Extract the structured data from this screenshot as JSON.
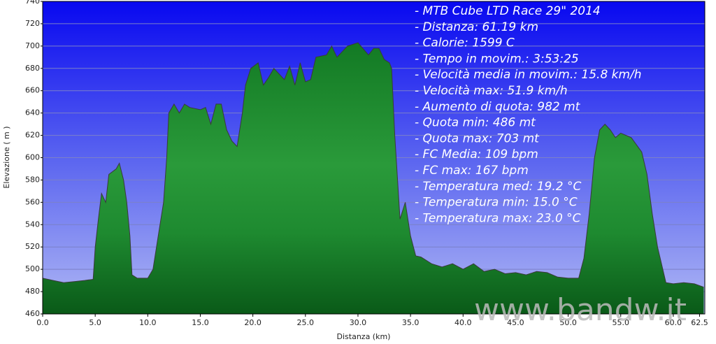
{
  "chart_data": {
    "type": "area",
    "x_label": "Distanza  (km)",
    "y_label": "Elevazione ( m )",
    "annotations": [
      "- MTB Cube LTD Race 29\" 2014",
      "- Distanza: 61.19 km",
      "- Calorie: 1599 C",
      "- Tempo in movim.: 3:53:25",
      "- Velocità media in movim.: 15.8 km/h",
      "- Velocità max: 51.9 km/h",
      "- Aumento di quota: 982 mt",
      "- Quota min: 486 mt",
      "- Quota max: 703 mt",
      "- FC Media: 109 bpm",
      "- FC max: 167 bpm",
      "- Temperatura med: 19.2 °C",
      "- Temperatura min: 15.0 °C",
      "- Temperatura max: 23.0 °C"
    ],
    "watermark": "www.bandw.it",
    "color": "#2a9a3a",
    "x": [
      0,
      1,
      2,
      3,
      4,
      4.8,
      5.0,
      5.3,
      5.6,
      6.0,
      6.3,
      7.0,
      7.3,
      7.7,
      8.0,
      8.3,
      8.5,
      9,
      10,
      10.5,
      11,
      11.5,
      11.8,
      12,
      12.5,
      13,
      13.5,
      14,
      15,
      15.5,
      16,
      16.5,
      17,
      17.5,
      18,
      18.5,
      19,
      19.3,
      19.8,
      20.5,
      21,
      21.5,
      22,
      23,
      23.5,
      24,
      24.5,
      25,
      25.5,
      26,
      27,
      27.5,
      28,
      29,
      30,
      31,
      31.5,
      32,
      32.5,
      33,
      33.2,
      33.5,
      34,
      34.5,
      35,
      35.5,
      36,
      37,
      38,
      39,
      40,
      41,
      42,
      43,
      44,
      45,
      46,
      47,
      48,
      49,
      50,
      51,
      51.5,
      52,
      52.5,
      53,
      53.5,
      54,
      54.5,
      55,
      56,
      57,
      57.5,
      58,
      58.5,
      59,
      59.3,
      60,
      61,
      62,
      62.9
    ],
    "values": [
      492,
      490,
      488,
      489,
      490,
      491,
      520,
      545,
      568,
      560,
      585,
      590,
      595,
      580,
      560,
      530,
      495,
      492,
      492,
      500,
      530,
      560,
      600,
      640,
      648,
      640,
      648,
      645,
      643,
      645,
      630,
      648,
      648,
      625,
      615,
      610,
      640,
      665,
      680,
      685,
      665,
      672,
      680,
      670,
      682,
      665,
      685,
      668,
      670,
      690,
      692,
      700,
      690,
      700,
      703,
      692,
      698,
      698,
      688,
      685,
      680,
      620,
      545,
      560,
      530,
      512,
      511,
      505,
      502,
      505,
      500,
      505,
      498,
      500,
      496,
      497,
      495,
      498,
      497,
      493,
      492,
      492,
      510,
      550,
      600,
      625,
      630,
      625,
      618,
      622,
      618,
      605,
      585,
      550,
      520,
      500,
      488,
      487,
      488,
      487,
      484
    ],
    "xlim": [
      0,
      63
    ],
    "ylim": [
      460,
      740
    ],
    "xticks": [
      {
        "value": 0,
        "label": "0.0"
      },
      {
        "value": 5,
        "label": "5.0"
      },
      {
        "value": 10,
        "label": "10.0"
      },
      {
        "value": 15,
        "label": "15.0"
      },
      {
        "value": 20,
        "label": "20.0"
      },
      {
        "value": 25,
        "label": "25.0"
      },
      {
        "value": 30,
        "label": "30.0"
      },
      {
        "value": 35,
        "label": "35.0"
      },
      {
        "value": 40,
        "label": "40.0"
      },
      {
        "value": 45,
        "label": "45.0"
      },
      {
        "value": 50,
        "label": "50.0"
      },
      {
        "value": 55,
        "label": "55.0"
      },
      {
        "value": 60,
        "label": "60.0"
      },
      62.5
    ],
    "yticks": [
      460,
      480,
      500,
      520,
      540,
      560,
      580,
      600,
      620,
      640,
      660,
      680,
      700,
      720,
      740
    ],
    "grid": true
  }
}
